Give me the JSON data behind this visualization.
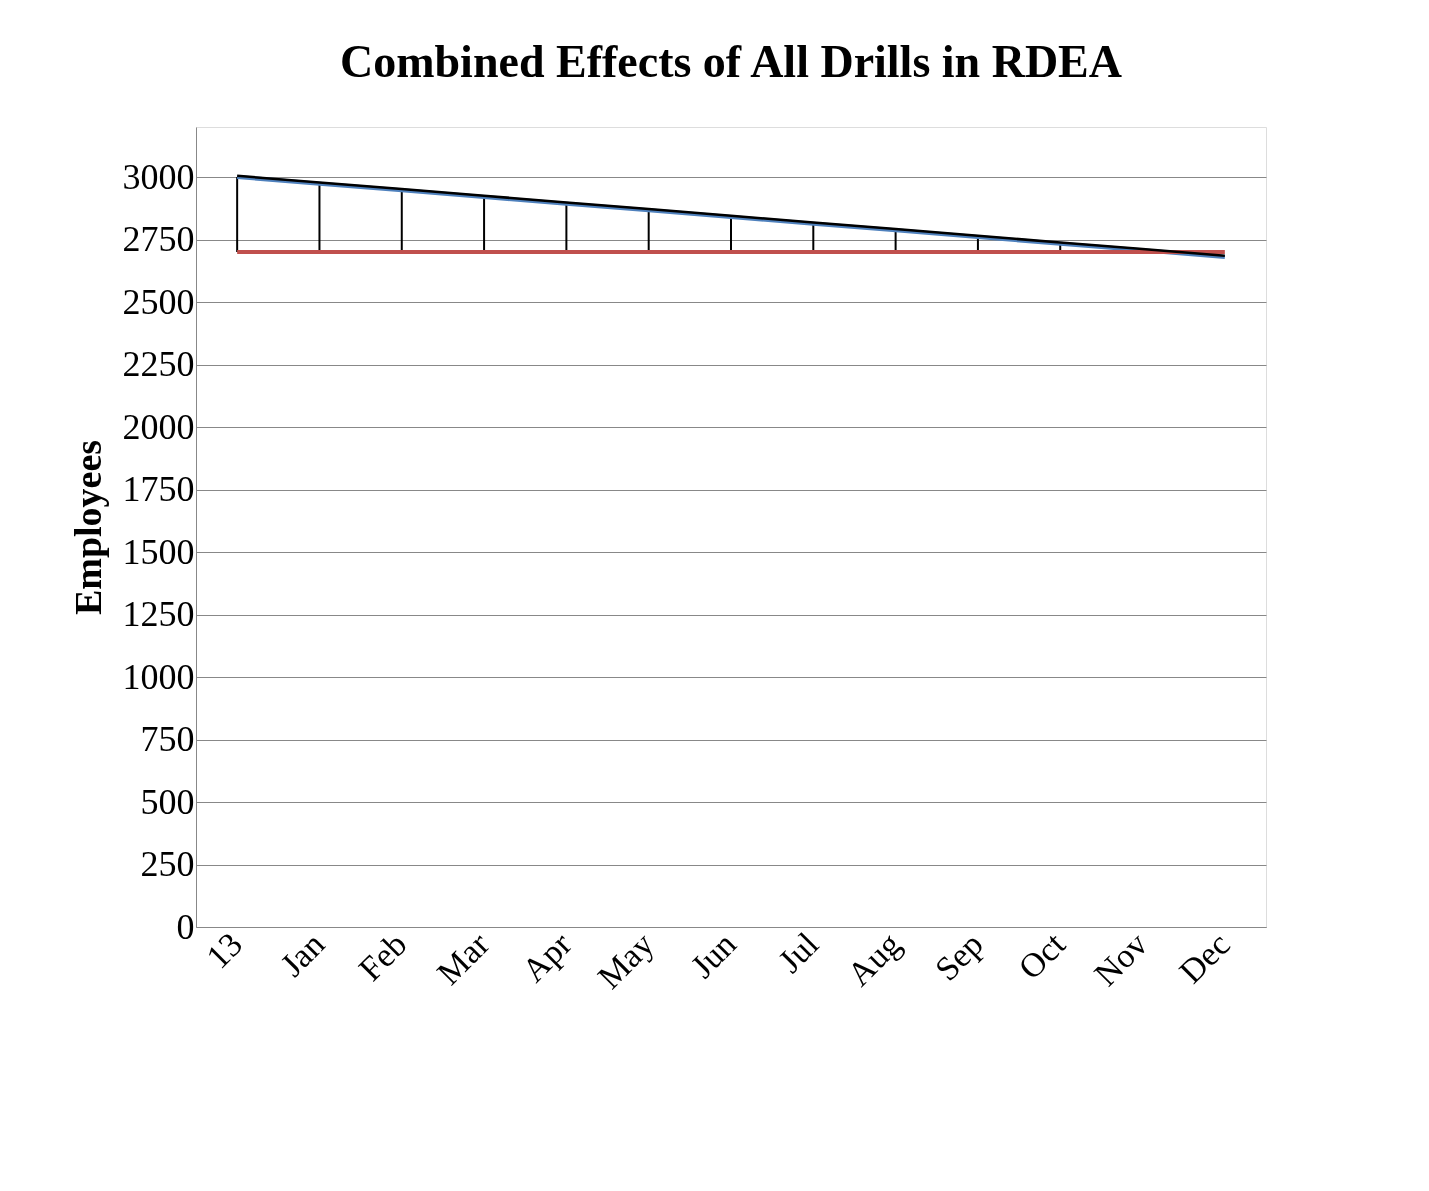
{
  "chart_data": {
    "type": "line",
    "title": "Combined Effects of All Drills in RDEA",
    "ylabel": "Employees",
    "categories": [
      "13",
      "Jan",
      "Feb",
      "Mar",
      "Apr",
      "May",
      "Jun",
      "Jul",
      "Aug",
      "Sep",
      "Oct",
      "Nov",
      "Dec"
    ],
    "series": [
      {
        "color": "#4f81bd",
        "values": [
          3000,
          2973,
          2947,
          2920,
          2893,
          2867,
          2840,
          2813,
          2787,
          2760,
          2733,
          2707,
          2680
        ]
      },
      {
        "color": "#c0504d",
        "values": [
          2700,
          2700,
          2700,
          2700,
          2700,
          2700,
          2700,
          2700,
          2700,
          2700,
          2700,
          2700,
          2700
        ],
        "errors": [
          [
            2700,
            3000
          ],
          [
            2700,
            2973
          ],
          [
            2700,
            2947
          ],
          [
            2700,
            2920
          ],
          [
            2700,
            2893
          ],
          [
            2700,
            2867
          ],
          [
            2700,
            2840
          ],
          [
            2700,
            2813
          ],
          [
            2700,
            2787
          ],
          [
            2700,
            2760
          ],
          [
            2700,
            2733
          ],
          [
            2700,
            2707
          ],
          null
        ]
      },
      {
        "color": "#000000",
        "values": [
          3005,
          2978,
          2952,
          2925,
          2898,
          2872,
          2845,
          2818,
          2792,
          2765,
          2738,
          2712,
          2685
        ]
      }
    ],
    "ylim": [
      0,
      3200
    ],
    "yticks": [
      0,
      250,
      500,
      750,
      1000,
      1250,
      1500,
      1750,
      2000,
      2250,
      2500,
      2750,
      3000
    ],
    "grid": "y",
    "marker": "none",
    "line_style": "solid"
  }
}
